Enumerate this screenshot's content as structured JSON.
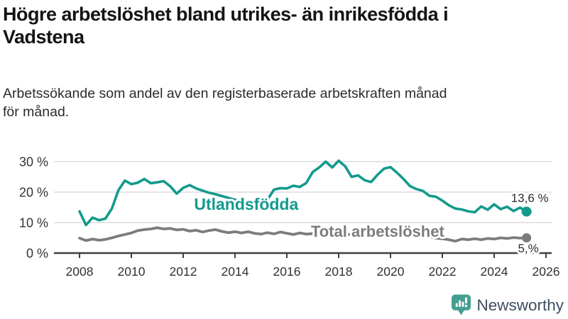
{
  "header": {
    "title_lines": [
      "Högre arbetslöshet bland utrikes- än inrikesfödda i",
      "Vadstena"
    ],
    "subtitle_lines": [
      "Arbetssökande som andel av den registerbaserade arbetskraften månad",
      "för månad."
    ]
  },
  "colors": {
    "accent_teal": "#139a8d",
    "series_gray": "#7c7c7c",
    "grid": "#dcdcdc",
    "axis": "#3f3f3f",
    "text_dark": "#141414",
    "logo_icon_teal": "#459e92",
    "logo_text": "#3e4d5f"
  },
  "chart_data": {
    "type": "line",
    "title": "Högre arbetslöshet bland utrikes- än inrikesfödda i Vadstena",
    "xlabel": "",
    "ylabel": "",
    "grid": "horizontal",
    "xlim": [
      2007.75,
      2026.3
    ],
    "ylim": [
      0,
      32
    ],
    "y_ticks": [
      {
        "value": 0,
        "label": "0 %"
      },
      {
        "value": 10,
        "label": "10 %"
      },
      {
        "value": 20,
        "label": "20 %"
      },
      {
        "value": 30,
        "label": "30 %"
      }
    ],
    "x_ticks": [
      {
        "value": 2008,
        "label": "2008"
      },
      {
        "value": 2010,
        "label": "2010"
      },
      {
        "value": 2012,
        "label": "2012"
      },
      {
        "value": 2014,
        "label": "2014"
      },
      {
        "value": 2016,
        "label": "2016"
      },
      {
        "value": 2018,
        "label": "2018"
      },
      {
        "value": 2020,
        "label": "2020"
      },
      {
        "value": 2022,
        "label": "2022"
      },
      {
        "value": 2024,
        "label": "2024"
      },
      {
        "value": 2026,
        "label": "2026"
      }
    ],
    "x": [
      2008,
      2008.25,
      2008.5,
      2008.75,
      2009,
      2009.25,
      2009.5,
      2009.75,
      2010,
      2010.25,
      2010.5,
      2010.75,
      2011,
      2011.25,
      2011.5,
      2011.75,
      2012,
      2012.25,
      2012.5,
      2012.75,
      2013,
      2013.25,
      2013.5,
      2013.75,
      2014,
      2014.25,
      2014.5,
      2014.75,
      2015,
      2015.25,
      2015.5,
      2015.75,
      2016,
      2016.25,
      2016.5,
      2016.75,
      2017,
      2017.25,
      2017.5,
      2017.75,
      2018,
      2018.25,
      2018.5,
      2018.75,
      2019,
      2019.25,
      2019.5,
      2019.75,
      2020,
      2020.25,
      2020.5,
      2020.75,
      2021,
      2021.25,
      2021.5,
      2021.75,
      2022,
      2022.25,
      2022.5,
      2022.75,
      2023,
      2023.25,
      2023.5,
      2023.75,
      2024,
      2024.25,
      2024.5,
      2024.75,
      2025,
      2025.25
    ],
    "series": [
      {
        "name": "Utlandsfödda",
        "color": "#139a8d",
        "stroke_width": 3.6,
        "values": [
          13.7,
          9.2,
          11.6,
          10.8,
          11.3,
          14.6,
          20.6,
          23.8,
          22.6,
          23.1,
          24.3,
          22.9,
          23.2,
          23.6,
          21.9,
          19.5,
          21.4,
          22.3,
          21.2,
          20.5,
          19.8,
          19.3,
          18.7,
          18.1,
          17.5,
          17.0,
          16.4,
          15.6,
          14.4,
          17.5,
          20.8,
          21.3,
          21.2,
          22.1,
          21.7,
          23.0,
          26.6,
          28.1,
          30.0,
          28.1,
          30.3,
          28.5,
          25.0,
          25.5,
          23.9,
          23.3,
          25.7,
          27.7,
          28.2,
          26.4,
          24.3,
          22.0,
          21.0,
          20.4,
          18.8,
          18.5,
          17.2,
          15.7,
          14.6,
          14.3,
          13.7,
          13.4,
          15.3,
          14.2,
          16.0,
          14.4,
          15.2,
          13.8,
          14.9,
          13.6
        ],
        "label": "Utlandsfödda",
        "label_pos": {
          "year": 2012.42,
          "value": 14.2
        },
        "label_font_size": 23,
        "end_dot_radius": 7,
        "end_label": "13,6 %",
        "end_label_pos": {
          "year": 2026.1,
          "value": 16.7
        }
      },
      {
        "name": "Total arbetslöshet",
        "color": "#7c7c7c",
        "stroke_width": 3.8,
        "values": [
          4.9,
          4.1,
          4.6,
          4.2,
          4.5,
          5.0,
          5.6,
          6.1,
          6.6,
          7.4,
          7.7,
          7.9,
          8.3,
          7.9,
          8.1,
          7.6,
          7.8,
          7.2,
          7.5,
          6.9,
          7.4,
          7.7,
          7.1,
          6.7,
          7.0,
          6.6,
          7.0,
          6.5,
          6.2,
          6.7,
          6.3,
          6.9,
          6.5,
          6.1,
          6.6,
          6.2,
          6.4,
          6.8,
          6.5,
          6.2,
          6.6,
          6.3,
          6.0,
          6.2,
          5.9,
          6.1,
          6.3,
          6.5,
          6.8,
          7.4,
          7.2,
          6.8,
          6.4,
          6.0,
          5.4,
          4.9,
          4.7,
          4.4,
          3.9,
          4.6,
          4.4,
          4.7,
          4.4,
          4.8,
          4.6,
          5.0,
          4.8,
          5.1,
          4.9,
          5.0
        ],
        "label": "Total arbetslöshet",
        "label_pos": {
          "year": 2016.93,
          "value": 5.3
        },
        "label_font_size": 22,
        "end_dot_radius": 6.5,
        "end_label": "5,%",
        "end_label_pos": {
          "year": 2025.72,
          "value": 0.2
        }
      }
    ],
    "legend_position": "inline-labels"
  },
  "footer": {
    "brand": "Newsworthy"
  }
}
